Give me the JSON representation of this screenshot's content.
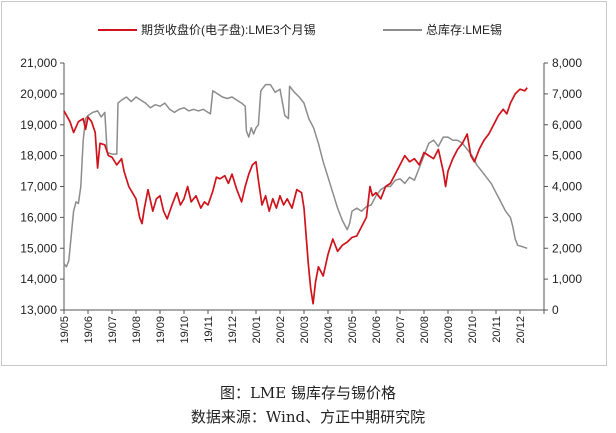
{
  "chart_data": {
    "type": "line",
    "legend_position": "top",
    "grid": false,
    "x_ticks": [
      "19/05",
      "19/06",
      "19/07",
      "19/08",
      "19/09",
      "19/10",
      "19/11",
      "19/12",
      "20/01",
      "20/02",
      "20/03",
      "20/04",
      "20/05",
      "20/06",
      "20/07",
      "20/08",
      "20/09",
      "20/10",
      "20/11",
      "20/12"
    ],
    "y_left": {
      "ticks": [
        "13,000",
        "14,000",
        "15,000",
        "16,000",
        "17,000",
        "18,000",
        "19,000",
        "20,000",
        "21,000"
      ],
      "min": 13000,
      "max": 21000
    },
    "y_right": {
      "ticks": [
        "0",
        "1,000",
        "2,000",
        "3,000",
        "4,000",
        "5,000",
        "6,000",
        "7,000",
        "8,000"
      ],
      "min": 0,
      "max": 8000
    },
    "series": [
      {
        "name": "期货收盘价(电子盘):LME3个月锡",
        "color": "#d0121b",
        "axis": "left",
        "points": [
          [
            0.0,
            19450
          ],
          [
            0.25,
            19100
          ],
          [
            0.4,
            18750
          ],
          [
            0.6,
            19100
          ],
          [
            0.8,
            19200
          ],
          [
            0.9,
            18850
          ],
          [
            1.0,
            19250
          ],
          [
            1.15,
            19100
          ],
          [
            1.3,
            18750
          ],
          [
            1.4,
            17600
          ],
          [
            1.5,
            18400
          ],
          [
            1.7,
            18350
          ],
          [
            1.85,
            18000
          ],
          [
            2.0,
            17950
          ],
          [
            2.2,
            17700
          ],
          [
            2.4,
            17900
          ],
          [
            2.5,
            17500
          ],
          [
            2.7,
            17000
          ],
          [
            2.85,
            16800
          ],
          [
            3.0,
            16600
          ],
          [
            3.15,
            16000
          ],
          [
            3.25,
            15800
          ],
          [
            3.35,
            16300
          ],
          [
            3.5,
            16900
          ],
          [
            3.7,
            16200
          ],
          [
            3.85,
            16600
          ],
          [
            4.0,
            16700
          ],
          [
            4.15,
            16200
          ],
          [
            4.3,
            15950
          ],
          [
            4.5,
            16400
          ],
          [
            4.7,
            16800
          ],
          [
            4.85,
            16400
          ],
          [
            5.0,
            16600
          ],
          [
            5.15,
            17000
          ],
          [
            5.3,
            16500
          ],
          [
            5.5,
            16700
          ],
          [
            5.7,
            16300
          ],
          [
            5.85,
            16500
          ],
          [
            6.0,
            16400
          ],
          [
            6.2,
            16850
          ],
          [
            6.35,
            17300
          ],
          [
            6.5,
            17250
          ],
          [
            6.7,
            17350
          ],
          [
            6.85,
            17100
          ],
          [
            7.0,
            17400
          ],
          [
            7.2,
            16900
          ],
          [
            7.4,
            16500
          ],
          [
            7.55,
            17000
          ],
          [
            7.7,
            17400
          ],
          [
            7.85,
            17700
          ],
          [
            8.0,
            17800
          ],
          [
            8.1,
            17200
          ],
          [
            8.25,
            16400
          ],
          [
            8.4,
            16700
          ],
          [
            8.55,
            16200
          ],
          [
            8.7,
            16600
          ],
          [
            8.85,
            16300
          ],
          [
            9.0,
            16700
          ],
          [
            9.15,
            16400
          ],
          [
            9.3,
            16600
          ],
          [
            9.5,
            16300
          ],
          [
            9.7,
            16900
          ],
          [
            9.9,
            16800
          ],
          [
            10.0,
            16300
          ],
          [
            10.08,
            15500
          ],
          [
            10.18,
            14500
          ],
          [
            10.28,
            13700
          ],
          [
            10.38,
            13200
          ],
          [
            10.48,
            13900
          ],
          [
            10.6,
            14400
          ],
          [
            10.8,
            14100
          ],
          [
            11.0,
            14800
          ],
          [
            11.2,
            15300
          ],
          [
            11.4,
            14900
          ],
          [
            11.6,
            15100
          ],
          [
            11.8,
            15200
          ],
          [
            12.0,
            15350
          ],
          [
            12.2,
            15400
          ],
          [
            12.4,
            15700
          ],
          [
            12.6,
            16000
          ],
          [
            12.75,
            17000
          ],
          [
            12.85,
            16700
          ],
          [
            13.0,
            16800
          ],
          [
            13.2,
            16600
          ],
          [
            13.4,
            17000
          ],
          [
            13.6,
            17100
          ],
          [
            13.8,
            17400
          ],
          [
            14.0,
            17700
          ],
          [
            14.2,
            18000
          ],
          [
            14.4,
            17800
          ],
          [
            14.6,
            17900
          ],
          [
            14.8,
            17700
          ],
          [
            15.0,
            18100
          ],
          [
            15.2,
            18000
          ],
          [
            15.4,
            17900
          ],
          [
            15.6,
            18200
          ],
          [
            15.8,
            17500
          ],
          [
            15.9,
            17000
          ],
          [
            16.0,
            17500
          ],
          [
            16.2,
            17900
          ],
          [
            16.4,
            18200
          ],
          [
            16.6,
            18400
          ],
          [
            16.8,
            18700
          ],
          [
            16.95,
            18000
          ],
          [
            17.1,
            17800
          ],
          [
            17.3,
            18200
          ],
          [
            17.5,
            18500
          ],
          [
            17.7,
            18700
          ],
          [
            17.9,
            19000
          ],
          [
            18.1,
            19300
          ],
          [
            18.3,
            19500
          ],
          [
            18.45,
            19350
          ],
          [
            18.6,
            19700
          ],
          [
            18.8,
            20000
          ],
          [
            19.0,
            20150
          ],
          [
            19.2,
            20100
          ],
          [
            19.3,
            20200
          ]
        ]
      },
      {
        "name": "总库存:LME锡",
        "color": "#8c8c8c",
        "axis": "right",
        "points": [
          [
            0.0,
            1500
          ],
          [
            0.1,
            1400
          ],
          [
            0.2,
            1600
          ],
          [
            0.3,
            2400
          ],
          [
            0.4,
            3200
          ],
          [
            0.5,
            3500
          ],
          [
            0.6,
            3450
          ],
          [
            0.7,
            4000
          ],
          [
            0.8,
            5500
          ],
          [
            0.9,
            6200
          ],
          [
            1.0,
            6300
          ],
          [
            1.2,
            6400
          ],
          [
            1.4,
            6450
          ],
          [
            1.55,
            6250
          ],
          [
            1.7,
            6400
          ],
          [
            1.8,
            5100
          ],
          [
            2.0,
            5050
          ],
          [
            2.2,
            5050
          ],
          [
            2.25,
            6700
          ],
          [
            2.4,
            6800
          ],
          [
            2.6,
            6900
          ],
          [
            2.8,
            6750
          ],
          [
            3.0,
            6900
          ],
          [
            3.2,
            6800
          ],
          [
            3.4,
            6700
          ],
          [
            3.6,
            6550
          ],
          [
            3.8,
            6650
          ],
          [
            4.0,
            6600
          ],
          [
            4.2,
            6700
          ],
          [
            4.4,
            6500
          ],
          [
            4.6,
            6400
          ],
          [
            4.8,
            6500
          ],
          [
            5.0,
            6550
          ],
          [
            5.2,
            6450
          ],
          [
            5.4,
            6500
          ],
          [
            5.6,
            6450
          ],
          [
            5.8,
            6500
          ],
          [
            6.0,
            6400
          ],
          [
            6.1,
            6350
          ],
          [
            6.2,
            7100
          ],
          [
            6.4,
            7000
          ],
          [
            6.6,
            6900
          ],
          [
            6.8,
            6850
          ],
          [
            7.0,
            6900
          ],
          [
            7.2,
            6800
          ],
          [
            7.4,
            6700
          ],
          [
            7.55,
            6600
          ],
          [
            7.6,
            5800
          ],
          [
            7.7,
            5600
          ],
          [
            7.8,
            5900
          ],
          [
            7.9,
            5700
          ],
          [
            8.0,
            5900
          ],
          [
            8.1,
            6000
          ],
          [
            8.2,
            7100
          ],
          [
            8.4,
            7300
          ],
          [
            8.6,
            7300
          ],
          [
            8.8,
            7050
          ],
          [
            9.0,
            7150
          ],
          [
            9.2,
            6300
          ],
          [
            9.35,
            6200
          ],
          [
            9.4,
            7250
          ],
          [
            9.6,
            7050
          ],
          [
            9.8,
            6900
          ],
          [
            10.0,
            6700
          ],
          [
            10.2,
            6200
          ],
          [
            10.4,
            5900
          ],
          [
            10.6,
            5400
          ],
          [
            10.8,
            4800
          ],
          [
            11.0,
            4300
          ],
          [
            11.2,
            3800
          ],
          [
            11.4,
            3300
          ],
          [
            11.6,
            2900
          ],
          [
            11.8,
            2600
          ],
          [
            11.9,
            2800
          ],
          [
            12.0,
            3200
          ],
          [
            12.2,
            3300
          ],
          [
            12.4,
            3200
          ],
          [
            12.6,
            3350
          ],
          [
            12.8,
            3400
          ],
          [
            13.0,
            3700
          ],
          [
            13.2,
            3900
          ],
          [
            13.4,
            4000
          ],
          [
            13.6,
            4000
          ],
          [
            13.8,
            4200
          ],
          [
            14.0,
            4250
          ],
          [
            14.2,
            4100
          ],
          [
            14.4,
            4300
          ],
          [
            14.6,
            4200
          ],
          [
            14.8,
            4600
          ],
          [
            15.0,
            5000
          ],
          [
            15.2,
            5400
          ],
          [
            15.4,
            5500
          ],
          [
            15.6,
            5300
          ],
          [
            15.8,
            5600
          ],
          [
            16.0,
            5600
          ],
          [
            16.2,
            5500
          ],
          [
            16.4,
            5500
          ],
          [
            16.6,
            5400
          ],
          [
            16.8,
            5200
          ],
          [
            17.0,
            5000
          ],
          [
            17.2,
            4700
          ],
          [
            17.4,
            4500
          ],
          [
            17.6,
            4300
          ],
          [
            17.8,
            4100
          ],
          [
            18.0,
            3800
          ],
          [
            18.2,
            3500
          ],
          [
            18.4,
            3200
          ],
          [
            18.6,
            3000
          ],
          [
            18.7,
            2700
          ],
          [
            18.8,
            2300
          ],
          [
            18.9,
            2100
          ],
          [
            19.1,
            2050
          ],
          [
            19.3,
            2000
          ]
        ]
      }
    ]
  },
  "caption": {
    "title": "图：LME 锡库存与锡价格",
    "source": "数据来源：Wind、方正中期研究院"
  }
}
